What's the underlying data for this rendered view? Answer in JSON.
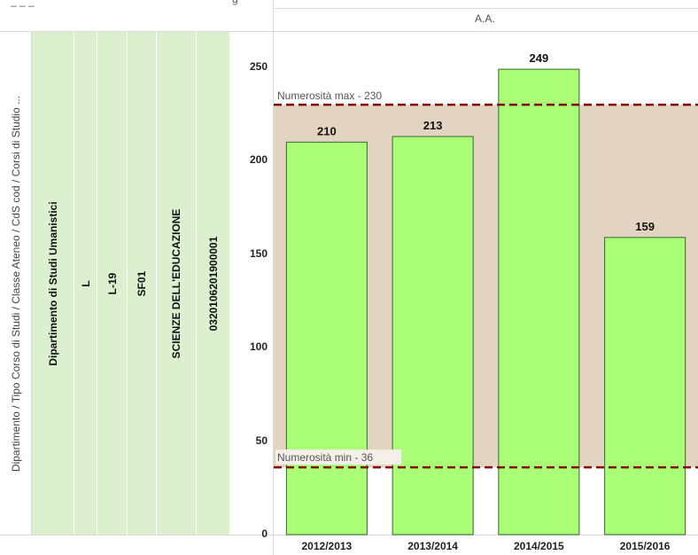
{
  "header": {
    "top_left_fragment": "_ _ _",
    "top_fragment": "g",
    "column_header": "A.A."
  },
  "row_header_label": "Dipartimento / Tipo Corso di Studi / Classe Ateneo / CdS cod / Corsi di Studio ...",
  "row_values": [
    "Dipartimento di Studi Umanistici",
    "L",
    "L-19",
    "SF01",
    "SCIENZE DELL'EDUCAZIONE",
    "0320106201900001"
  ],
  "colors": {
    "bar_fill": "#aaff77",
    "bar_stroke": "#2e6b2e",
    "band_fill": "#e3d3c1",
    "reference_line": "#8b0000",
    "row_cell_fill": "#dcf0cf"
  },
  "chart_data": {
    "type": "bar",
    "categories": [
      "2012/2013",
      "2013/2014",
      "2014/2015",
      "2015/2016"
    ],
    "values": [
      210,
      213,
      249,
      159
    ],
    "data_labels": [
      "210",
      "213",
      "249",
      "159"
    ],
    "y_ticks": [
      "0",
      "50",
      "100",
      "150",
      "200",
      "250"
    ],
    "y_tick_values": [
      0,
      50,
      100,
      150,
      200,
      250
    ],
    "ylim": [
      0,
      265
    ],
    "xlabel": "",
    "ylabel": "",
    "reference_lines": [
      {
        "label": "Numerosità max - 230",
        "value": 230
      },
      {
        "label": "Numerosità min - 36",
        "value": 36
      }
    ],
    "band": [
      36,
      230
    ],
    "grid": false
  }
}
